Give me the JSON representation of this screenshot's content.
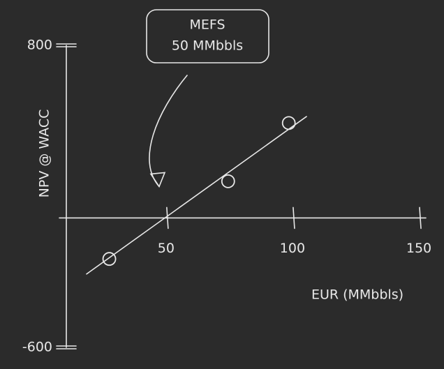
{
  "chart_data": {
    "type": "scatter",
    "annotation": [
      "MEFS",
      "50 MMbbls"
    ],
    "x_label": "EUR (MMbbls)",
    "y_label": "NPV @ WACC",
    "x": [
      27,
      74,
      98
    ],
    "values": [
      -190,
      170,
      440
    ],
    "trendline": {
      "x": [
        18,
        105
      ],
      "values": [
        -260,
        470
      ]
    },
    "xlim": [
      10,
      150
    ],
    "xticks": [
      50,
      100,
      150
    ],
    "ylim": [
      -600,
      800
    ],
    "yticks": [
      800,
      -600
    ],
    "color": "#e8e8e8"
  }
}
